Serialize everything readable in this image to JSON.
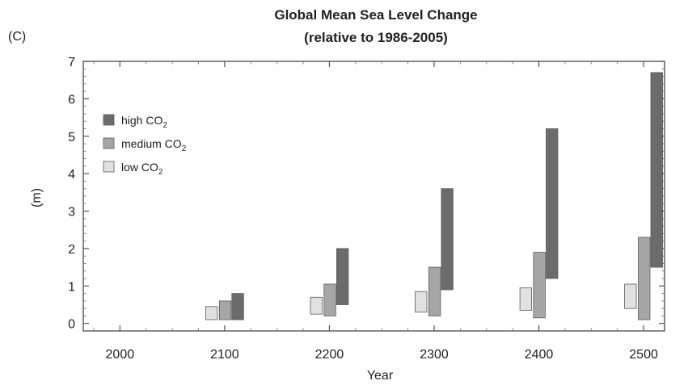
{
  "panel_label": "(C)",
  "colors": {
    "high": "#6b6b6b",
    "medium": "#a6a6a6",
    "low": "#e1e1e1",
    "bar_stroke": "#5a5a5a",
    "axis": "#555555"
  },
  "chart_data": {
    "type": "bar",
    "title": "Global Mean Sea Level Change",
    "subtitle": "(relative to 1986-2005)",
    "xlabel": "Year",
    "ylabel": "(m)",
    "xlim": [
      1965,
      2520
    ],
    "ylim": [
      -0.2,
      7
    ],
    "x_ticks": [
      "2000",
      "2100",
      "2200",
      "2300",
      "2400",
      "2500"
    ],
    "y_ticks": [
      "0",
      "1",
      "2",
      "3",
      "4",
      "5",
      "6",
      "7"
    ],
    "legend_position": "upper-left",
    "categories": [
      "2100",
      "2200",
      "2300",
      "2400",
      "2500"
    ],
    "series": [
      {
        "name": "high CO2",
        "legend_base": "high CO",
        "legend_sub": "2",
        "color_key": "high",
        "ranges": [
          [
            0.1,
            0.8
          ],
          [
            0.5,
            2.0
          ],
          [
            0.9,
            3.6
          ],
          [
            1.2,
            5.2
          ],
          [
            1.5,
            6.7
          ]
        ]
      },
      {
        "name": "medium CO2",
        "legend_base": "medium CO",
        "legend_sub": "2",
        "color_key": "medium",
        "ranges": [
          [
            0.1,
            0.6
          ],
          [
            0.2,
            1.05
          ],
          [
            0.2,
            1.5
          ],
          [
            0.15,
            1.9
          ],
          [
            0.1,
            2.3
          ]
        ]
      },
      {
        "name": "low CO2",
        "legend_base": "low CO",
        "legend_sub": "2",
        "color_key": "low",
        "ranges": [
          [
            0.1,
            0.45
          ],
          [
            0.25,
            0.7
          ],
          [
            0.3,
            0.85
          ],
          [
            0.35,
            0.95
          ],
          [
            0.4,
            1.05
          ]
        ]
      }
    ]
  }
}
